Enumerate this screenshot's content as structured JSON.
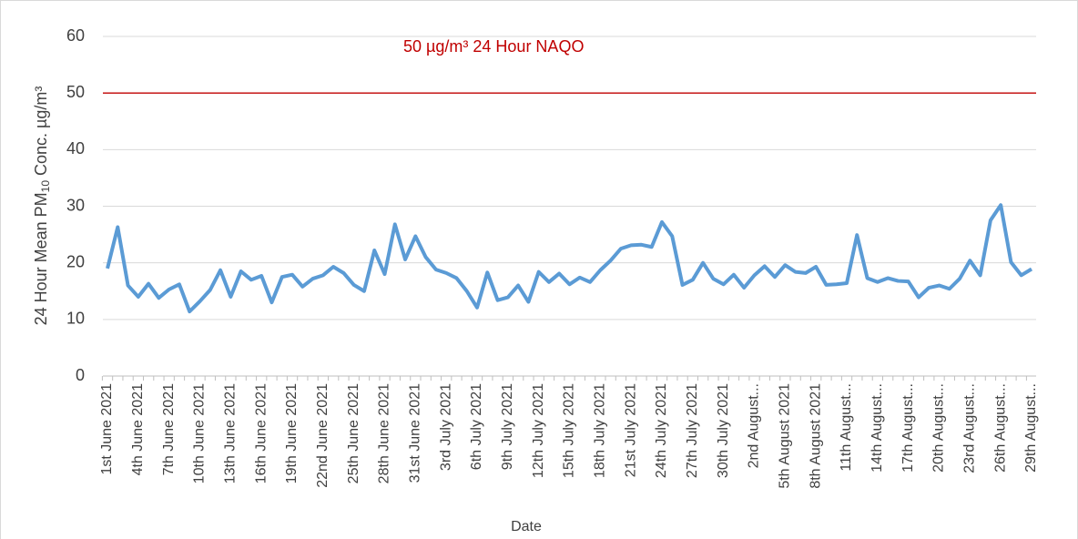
{
  "chart_data": {
    "type": "line",
    "xlabel": "Date",
    "ylabel": {
      "text": "24 Hour Mean PM",
      "subscript": "10",
      "suffix": " Conc. µg/m³"
    },
    "categories": [
      "1st June 2021",
      null,
      null,
      "4th June 2021",
      null,
      null,
      "7th June 2021",
      null,
      null,
      "10th June 2021",
      null,
      null,
      "13th June 2021",
      null,
      null,
      "16th June 2021",
      null,
      null,
      "19th June 2021",
      null,
      null,
      "22nd June 2021",
      null,
      null,
      "25th June 2021",
      null,
      null,
      "28th June 2021",
      null,
      null,
      "31st June 2021",
      null,
      null,
      "3rd July 2021",
      null,
      null,
      "6th July 2021",
      null,
      null,
      "9th July 2021",
      null,
      null,
      "12th July 2021",
      null,
      null,
      "15th July 2021",
      null,
      null,
      "18th July 2021",
      null,
      null,
      "21st July 2021",
      null,
      null,
      "24th July 2021",
      null,
      null,
      "27th July 2021",
      null,
      null,
      "30th July 2021",
      null,
      null,
      "2nd August...",
      null,
      null,
      "5th August 2021",
      null,
      null,
      "8th August 2021",
      null,
      null,
      "11th August...",
      null,
      null,
      "14th August...",
      null,
      null,
      "17th August...",
      null,
      null,
      "20th August...",
      null,
      null,
      "23rd August...",
      null,
      null,
      "26th August...",
      null,
      null,
      "29th August..."
    ],
    "series": [
      {
        "name": "24 Hour Mean PM10",
        "color": "#5b9bd5",
        "values": [
          19,
          26.3,
          16,
          14,
          16.3,
          13.8,
          15.3,
          16.2,
          11.4,
          13.2,
          15.2,
          18.7,
          14,
          18.5,
          17,
          17.7,
          13,
          17.5,
          17.9,
          15.8,
          17.2,
          17.8,
          19.3,
          18.2,
          16.1,
          15,
          22.2,
          18,
          26.8,
          20.6,
          24.7,
          21,
          18.8,
          18.2,
          17.3,
          15,
          12.1,
          18.3,
          13.4,
          13.9,
          16,
          13.1,
          18.4,
          16.6,
          18.1,
          16.2,
          17.4,
          16.6,
          18.7,
          20.4,
          22.5,
          23.1,
          23.2,
          22.8,
          27.2,
          24.7,
          16.1,
          17,
          20,
          17.2,
          16.2,
          17.9,
          15.6,
          17.8,
          19.4,
          17.5,
          19.6,
          18.4,
          18.2,
          19.3,
          16.1,
          16.2,
          16.4,
          24.9,
          17.3,
          16.6,
          17.3,
          16.8,
          16.7,
          13.9,
          15.6,
          16,
          15.4,
          17.2,
          20.4,
          17.8,
          27.5,
          30.2,
          20.1,
          17.8,
          18.9
        ]
      }
    ],
    "threshold": {
      "value": 50,
      "label": "50 µg/m³ 24 Hour NAQO",
      "color": "#c00000"
    },
    "ylim": [
      0,
      60
    ],
    "yticks": [
      0,
      10,
      20,
      30,
      40,
      50,
      60
    ],
    "grid": true
  }
}
